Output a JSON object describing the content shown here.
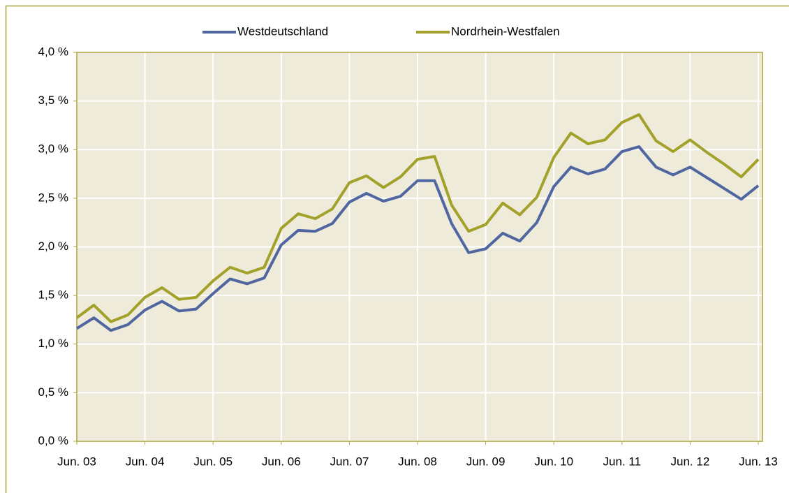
{
  "chart_data": {
    "type": "line",
    "categories": [
      "Jun. 03",
      null,
      null,
      null,
      "Jun. 04",
      null,
      null,
      null,
      "Jun. 05",
      null,
      null,
      null,
      "Jun. 06",
      null,
      null,
      null,
      "Jun. 07",
      null,
      null,
      null,
      "Jun. 08",
      null,
      null,
      null,
      "Jun. 09",
      null,
      null,
      null,
      "Jun. 10",
      null,
      null,
      null,
      "Jun. 11",
      null,
      null,
      null,
      "Jun. 12",
      null,
      null,
      null,
      "Jun. 13"
    ],
    "series": [
      {
        "name": "Westdeutschland",
        "color": "#4f66a0",
        "values": [
          1.16,
          1.27,
          1.14,
          1.2,
          1.35,
          1.44,
          1.34,
          1.36,
          1.52,
          1.67,
          1.62,
          1.68,
          2.02,
          2.17,
          2.16,
          2.24,
          2.46,
          2.55,
          2.47,
          2.52,
          2.68,
          2.68,
          2.24,
          1.94,
          1.98,
          2.14,
          2.06,
          2.25,
          2.62,
          2.82,
          2.75,
          2.8,
          2.98,
          3.03,
          2.82,
          2.74,
          2.82,
          2.71,
          2.6,
          2.49,
          2.63
        ]
      },
      {
        "name": "Nordrhein-Westfalen",
        "color": "#a2a22a",
        "values": [
          1.27,
          1.4,
          1.23,
          1.3,
          1.48,
          1.58,
          1.46,
          1.48,
          1.65,
          1.79,
          1.73,
          1.79,
          2.19,
          2.34,
          2.29,
          2.39,
          2.66,
          2.73,
          2.61,
          2.72,
          2.9,
          2.93,
          2.43,
          2.16,
          2.23,
          2.45,
          2.33,
          2.51,
          2.92,
          3.17,
          3.06,
          3.1,
          3.28,
          3.36,
          3.09,
          2.98,
          3.1,
          2.97,
          2.85,
          2.72,
          2.9
        ]
      }
    ],
    "ylim": [
      0,
      4
    ],
    "yticks": [
      {
        "value": 0,
        "label": "0,0 %"
      },
      {
        "value": 0.5,
        "label": "0,5 %"
      },
      {
        "value": 1,
        "label": "1,0 %"
      },
      {
        "value": 1.5,
        "label": "1,5 %"
      },
      {
        "value": 2,
        "label": "2,0 %"
      },
      {
        "value": 2.5,
        "label": "2,5 %"
      },
      {
        "value": 3,
        "label": "3,0 %"
      },
      {
        "value": 3.5,
        "label": "3,5 %"
      },
      {
        "value": 4,
        "label": "4,0 %"
      }
    ],
    "grid": true,
    "legend": "top"
  }
}
